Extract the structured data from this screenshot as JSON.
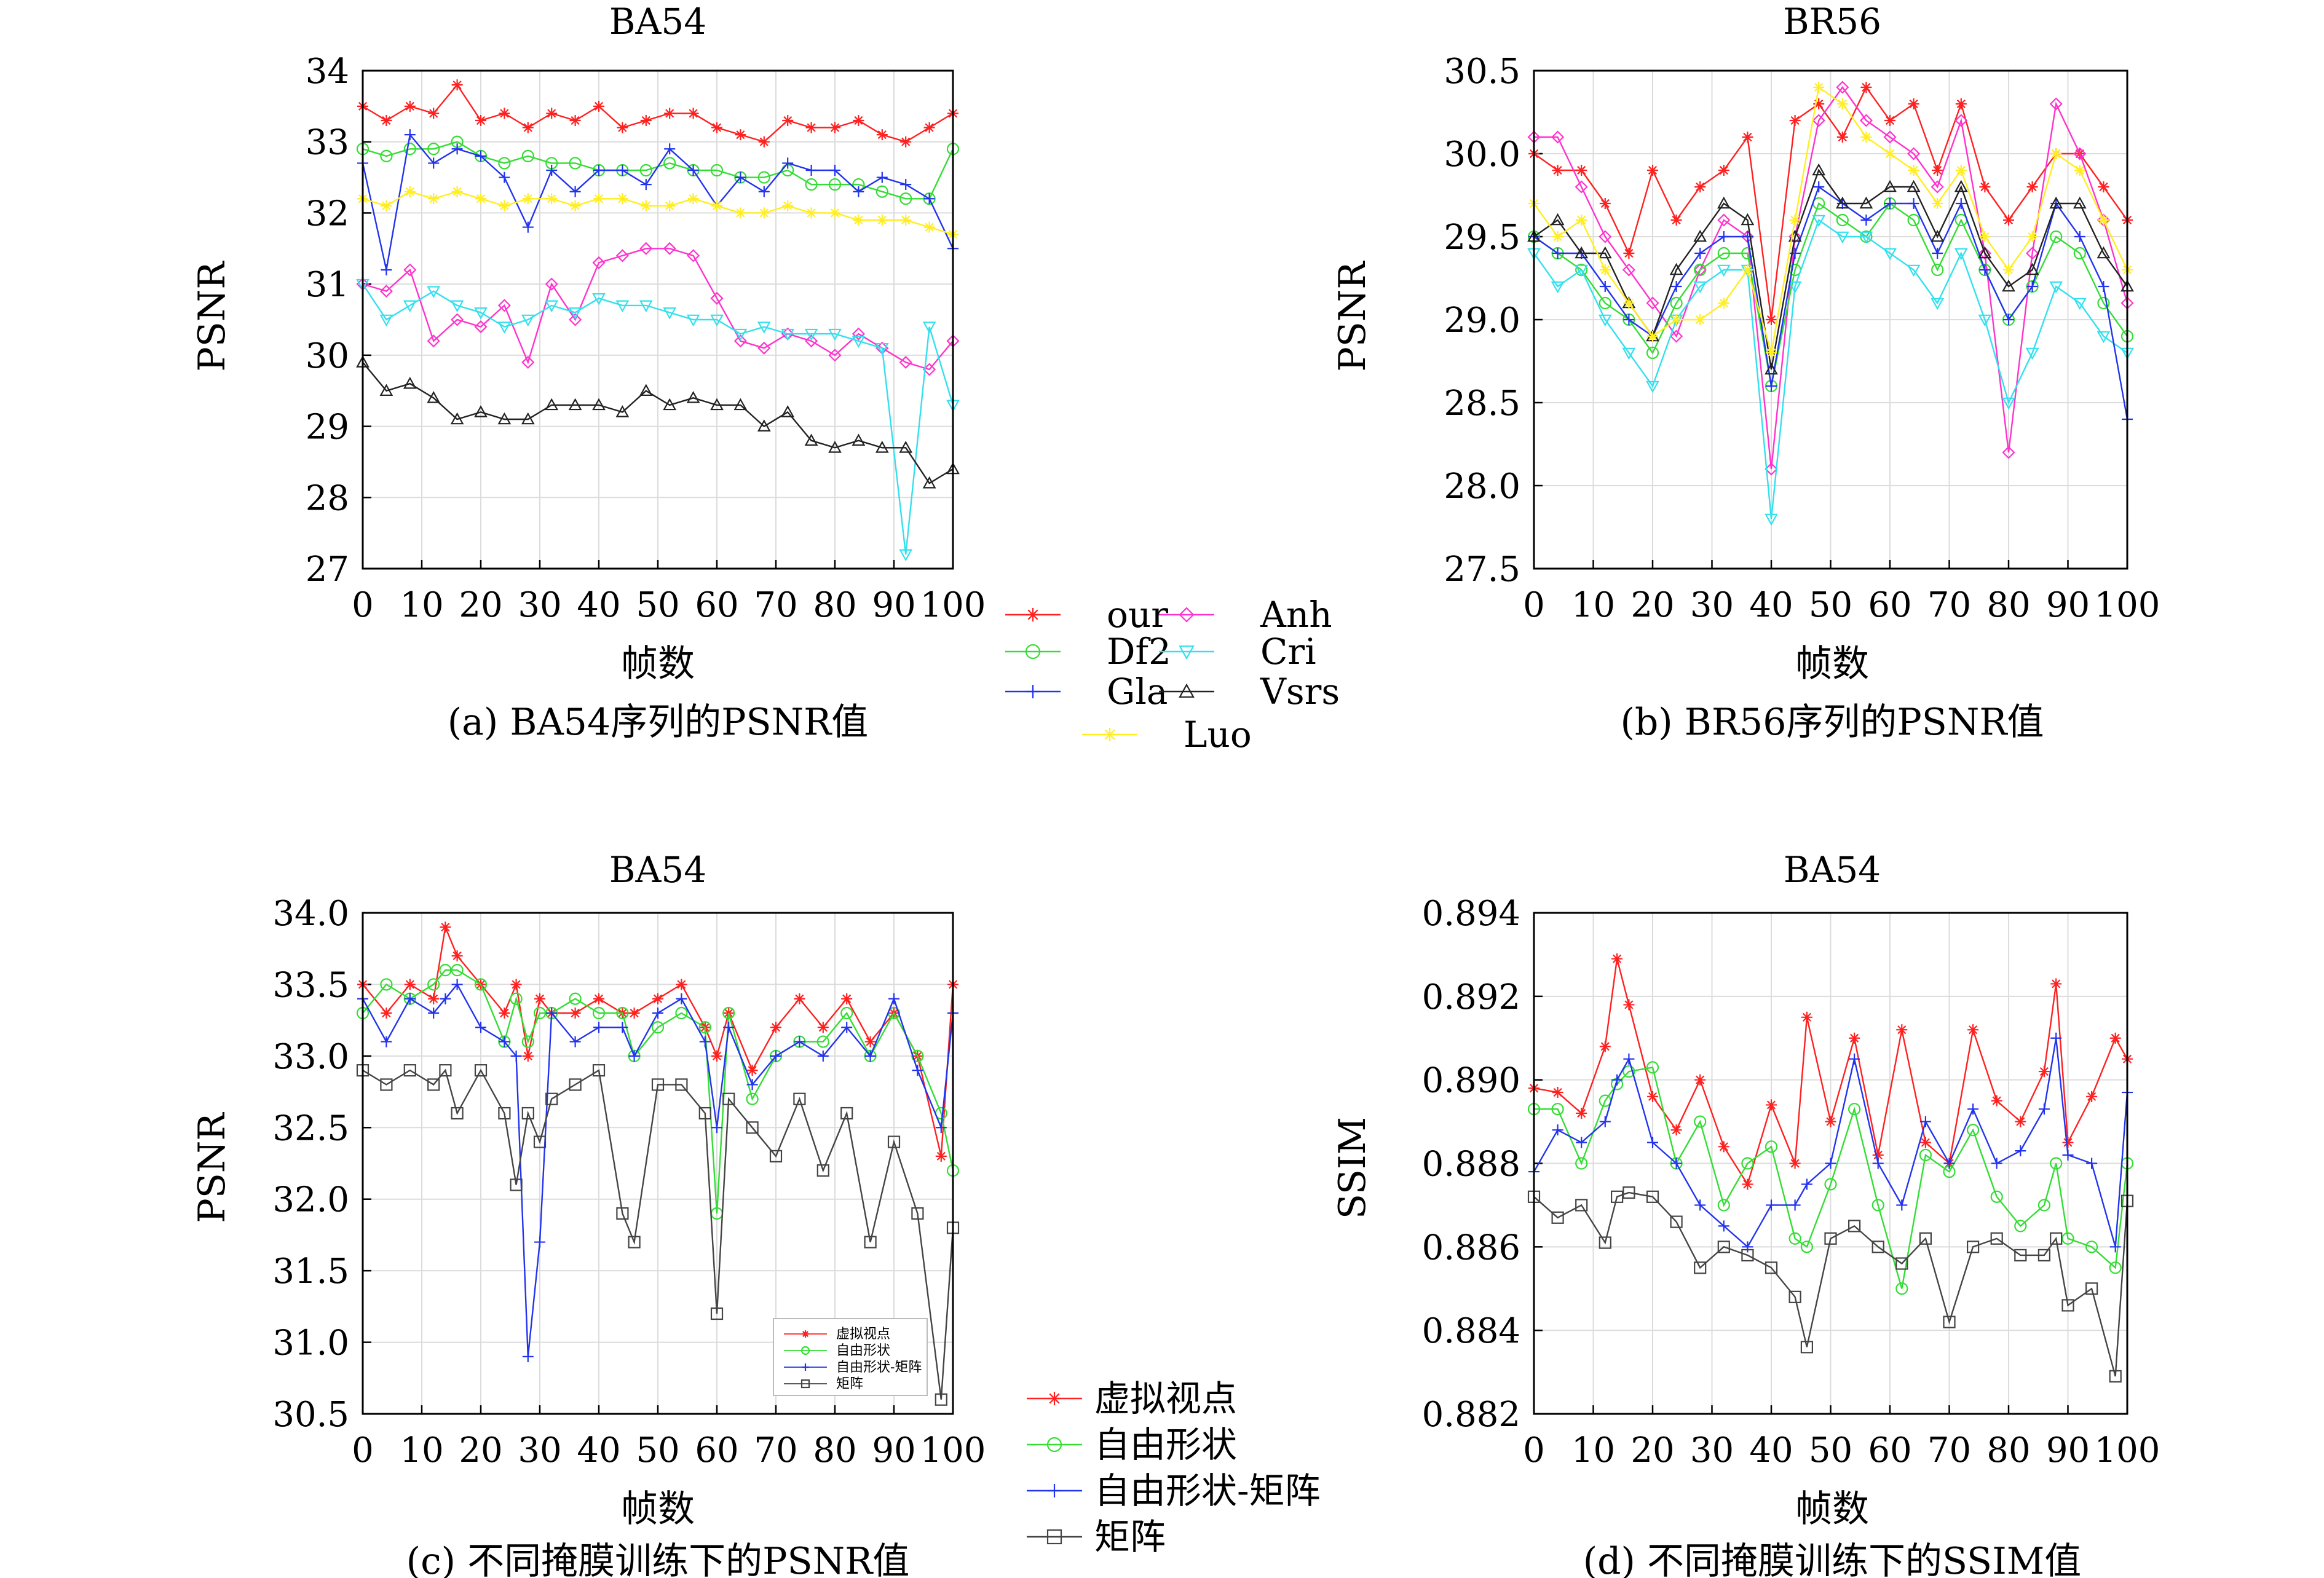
{
  "panels": [
    {
      "id": "a",
      "title": "BA54",
      "ylabel": "PSNR",
      "xlabel": "帧数",
      "caption": "(a) BA54序列的PSNR值",
      "xticks": [
        "0",
        "10",
        "20",
        "30",
        "40",
        "50",
        "60",
        "70",
        "80",
        "90",
        "100"
      ],
      "yticks": [
        "27",
        "28",
        "29",
        "30",
        "31",
        "32",
        "33",
        "34"
      ]
    },
    {
      "id": "b",
      "title": "BR56",
      "ylabel": "PSNR",
      "xlabel": "帧数",
      "caption": "(b) BR56序列的PSNR值",
      "xticks": [
        "0",
        "10",
        "20",
        "30",
        "40",
        "50",
        "60",
        "70",
        "80",
        "90",
        "100"
      ],
      "yticks": [
        "27.5",
        "28.0",
        "28.5",
        "29.0",
        "29.5",
        "30.0",
        "30.5"
      ]
    },
    {
      "id": "c",
      "title": "BA54",
      "ylabel": "PSNR",
      "xlabel": "帧数",
      "caption": "(c) 不同掩膜训练下的PSNR值",
      "xticks": [
        "0",
        "10",
        "20",
        "30",
        "40",
        "50",
        "60",
        "70",
        "80",
        "90",
        "100"
      ],
      "yticks": [
        "30.5",
        "31.0",
        "31.5",
        "32.0",
        "32.5",
        "33.0",
        "33.5",
        "34.0"
      ]
    },
    {
      "id": "d",
      "title": "BA54",
      "ylabel": "SSIM",
      "xlabel": "帧数",
      "caption": "(d) 不同掩膜训练下的SSIM值",
      "xticks": [
        "0",
        "10",
        "20",
        "30",
        "40",
        "50",
        "60",
        "70",
        "80",
        "90",
        "100"
      ],
      "yticks": [
        "0.882",
        "0.884",
        "0.886",
        "0.888",
        "0.890",
        "0.892",
        "0.894"
      ]
    }
  ],
  "legend_top": {
    "items": [
      {
        "label": "our",
        "color": "#ff2020",
        "marker": "star"
      },
      {
        "label": "Anh",
        "color": "#ff33cc",
        "marker": "diamond"
      },
      {
        "label": "Df2",
        "color": "#33dd33",
        "marker": "circle"
      },
      {
        "label": "Cri",
        "color": "#33e0ee",
        "marker": "tri-down"
      },
      {
        "label": "Gla",
        "color": "#2233ee",
        "marker": "plus"
      },
      {
        "label": "Vsrs",
        "color": "#222222",
        "marker": "tri-up"
      },
      {
        "label": "Luo",
        "color": "#ffee22",
        "marker": "star"
      }
    ]
  },
  "legend_bottom": {
    "items": [
      {
        "label": "虚拟视点",
        "color": "#ff2020",
        "marker": "star"
      },
      {
        "label": "自由形状",
        "color": "#33dd33",
        "marker": "circle"
      },
      {
        "label": "自由形状-矩阵",
        "color": "#2233ee",
        "marker": "plus"
      },
      {
        "label": "矩阵",
        "color": "#444444",
        "marker": "square"
      }
    ]
  },
  "chart_data": [
    {
      "type": "line",
      "title": "BA54",
      "xlabel": "帧数",
      "ylabel": "PSNR",
      "xlim": [
        0,
        100
      ],
      "ylim": [
        27,
        34
      ],
      "grid": true,
      "x": [
        0,
        4,
        8,
        12,
        16,
        20,
        24,
        28,
        32,
        36,
        40,
        44,
        48,
        52,
        56,
        60,
        64,
        68,
        72,
        76,
        80,
        84,
        88,
        92,
        96,
        100
      ],
      "series": [
        {
          "name": "our",
          "color": "#ff2020",
          "marker": "star",
          "values": [
            33.5,
            33.3,
            33.5,
            33.4,
            33.8,
            33.3,
            33.4,
            33.2,
            33.4,
            33.3,
            33.5,
            33.2,
            33.3,
            33.4,
            33.4,
            33.2,
            33.1,
            33.0,
            33.3,
            33.2,
            33.2,
            33.3,
            33.1,
            33.0,
            33.2,
            33.4
          ]
        },
        {
          "name": "Df2",
          "color": "#33dd33",
          "marker": "circle",
          "values": [
            32.9,
            32.8,
            32.9,
            32.9,
            33.0,
            32.8,
            32.7,
            32.8,
            32.7,
            32.7,
            32.6,
            32.6,
            32.6,
            32.7,
            32.6,
            32.6,
            32.5,
            32.5,
            32.6,
            32.4,
            32.4,
            32.4,
            32.3,
            32.2,
            32.2,
            32.9
          ]
        },
        {
          "name": "Gla",
          "color": "#2233ee",
          "marker": "plus",
          "values": [
            32.7,
            31.2,
            33.1,
            32.7,
            32.9,
            32.8,
            32.5,
            31.8,
            32.6,
            32.3,
            32.6,
            32.6,
            32.4,
            32.9,
            32.6,
            32.1,
            32.5,
            32.3,
            32.7,
            32.6,
            32.6,
            32.3,
            32.5,
            32.4,
            32.2,
            31.5
          ]
        },
        {
          "name": "Luo",
          "color": "#ffee22",
          "marker": "star",
          "values": [
            32.2,
            32.1,
            32.3,
            32.2,
            32.3,
            32.2,
            32.1,
            32.2,
            32.2,
            32.1,
            32.2,
            32.2,
            32.1,
            32.1,
            32.2,
            32.1,
            32.0,
            32.0,
            32.1,
            32.0,
            32.0,
            31.9,
            31.9,
            31.9,
            31.8,
            31.7
          ]
        },
        {
          "name": "Anh",
          "color": "#ff33cc",
          "marker": "diamond",
          "values": [
            31.0,
            30.9,
            31.2,
            30.2,
            30.5,
            30.4,
            30.7,
            29.9,
            31.0,
            30.5,
            31.3,
            31.4,
            31.5,
            31.5,
            31.4,
            30.8,
            30.2,
            30.1,
            30.3,
            30.2,
            30.0,
            30.3,
            30.1,
            29.9,
            29.8,
            30.2
          ]
        },
        {
          "name": "Cri",
          "color": "#33e0ee",
          "marker": "tri-down",
          "values": [
            31.0,
            30.5,
            30.7,
            30.9,
            30.7,
            30.6,
            30.4,
            30.5,
            30.7,
            30.6,
            30.8,
            30.7,
            30.7,
            30.6,
            30.5,
            30.5,
            30.3,
            30.4,
            30.3,
            30.3,
            30.3,
            30.2,
            30.1,
            27.2,
            30.4,
            29.3
          ]
        },
        {
          "name": "Vsrs",
          "color": "#222222",
          "marker": "tri-up",
          "values": [
            29.9,
            29.5,
            29.6,
            29.4,
            29.1,
            29.2,
            29.1,
            29.1,
            29.3,
            29.3,
            29.3,
            29.2,
            29.5,
            29.3,
            29.4,
            29.3,
            29.3,
            29.0,
            29.2,
            28.8,
            28.7,
            28.8,
            28.7,
            28.7,
            28.2,
            28.4
          ]
        }
      ]
    },
    {
      "type": "line",
      "title": "BR56",
      "xlabel": "帧数",
      "ylabel": "PSNR",
      "xlim": [
        0,
        100
      ],
      "ylim": [
        27.5,
        30.5
      ],
      "grid": true,
      "x": [
        0,
        4,
        8,
        12,
        16,
        20,
        24,
        28,
        32,
        36,
        40,
        44,
        48,
        52,
        56,
        60,
        64,
        68,
        72,
        76,
        80,
        84,
        88,
        92,
        96,
        100
      ],
      "series": [
        {
          "name": "our",
          "color": "#ff2020",
          "marker": "star",
          "values": [
            30.0,
            29.9,
            29.9,
            29.7,
            29.4,
            29.9,
            29.6,
            29.8,
            29.9,
            30.1,
            29.0,
            30.2,
            30.3,
            30.1,
            30.4,
            30.2,
            30.3,
            29.9,
            30.3,
            29.8,
            29.6,
            29.8,
            30.0,
            30.0,
            29.8,
            29.6
          ]
        },
        {
          "name": "Anh",
          "color": "#ff33cc",
          "marker": "diamond",
          "values": [
            30.1,
            30.1,
            29.8,
            29.5,
            29.3,
            29.1,
            28.9,
            29.3,
            29.6,
            29.5,
            28.1,
            29.5,
            30.2,
            30.4,
            30.2,
            30.1,
            30.0,
            29.8,
            30.2,
            29.4,
            28.2,
            29.4,
            30.3,
            30.0,
            29.6,
            29.1
          ]
        },
        {
          "name": "Df2",
          "color": "#33dd33",
          "marker": "circle",
          "values": [
            29.5,
            29.4,
            29.3,
            29.1,
            29.0,
            28.8,
            29.1,
            29.3,
            29.4,
            29.4,
            28.6,
            29.3,
            29.7,
            29.6,
            29.5,
            29.7,
            29.6,
            29.3,
            29.6,
            29.3,
            29.0,
            29.2,
            29.5,
            29.4,
            29.1,
            28.9
          ]
        },
        {
          "name": "Cri",
          "color": "#33e0ee",
          "marker": "tri-down",
          "values": [
            29.4,
            29.2,
            29.3,
            29.0,
            28.8,
            28.6,
            29.0,
            29.2,
            29.3,
            29.3,
            27.8,
            29.2,
            29.6,
            29.5,
            29.5,
            29.4,
            29.3,
            29.1,
            29.4,
            29.0,
            28.5,
            28.8,
            29.2,
            29.1,
            28.9,
            28.8
          ]
        },
        {
          "name": "Gla",
          "color": "#2233ee",
          "marker": "plus",
          "values": [
            29.5,
            29.4,
            29.4,
            29.2,
            29.0,
            28.9,
            29.2,
            29.4,
            29.5,
            29.5,
            28.6,
            29.4,
            29.8,
            29.7,
            29.6,
            29.7,
            29.7,
            29.4,
            29.7,
            29.3,
            29.0,
            29.2,
            29.7,
            29.5,
            29.2,
            28.4
          ]
        },
        {
          "name": "Vsrs",
          "color": "#222222",
          "marker": "tri-up",
          "values": [
            29.5,
            29.6,
            29.4,
            29.4,
            29.1,
            28.9,
            29.3,
            29.5,
            29.7,
            29.6,
            28.7,
            29.5,
            29.9,
            29.7,
            29.7,
            29.8,
            29.8,
            29.5,
            29.8,
            29.4,
            29.2,
            29.3,
            29.7,
            29.7,
            29.4,
            29.2
          ]
        },
        {
          "name": "Luo",
          "color": "#ffee22",
          "marker": "star",
          "values": [
            29.7,
            29.5,
            29.6,
            29.3,
            29.1,
            28.9,
            29.0,
            29.0,
            29.1,
            29.3,
            28.8,
            29.6,
            30.4,
            30.3,
            30.1,
            30.0,
            29.9,
            29.7,
            29.9,
            29.5,
            29.3,
            29.5,
            30.0,
            29.9,
            29.6,
            29.3
          ]
        }
      ]
    },
    {
      "type": "line",
      "title": "BA54",
      "xlabel": "帧数",
      "ylabel": "PSNR",
      "xlim": [
        0,
        100
      ],
      "ylim": [
        30.5,
        34.0
      ],
      "grid": true,
      "x": [
        0,
        4,
        8,
        12,
        14,
        16,
        20,
        24,
        26,
        28,
        30,
        32,
        36,
        40,
        44,
        46,
        50,
        54,
        58,
        60,
        62,
        66,
        70,
        74,
        78,
        82,
        86,
        90,
        94,
        98,
        100
      ],
      "series": [
        {
          "name": "虚拟视点",
          "color": "#ff2020",
          "marker": "star",
          "values": [
            33.5,
            33.3,
            33.5,
            33.4,
            33.9,
            33.7,
            33.5,
            33.3,
            33.5,
            33.0,
            33.4,
            33.3,
            33.3,
            33.4,
            33.3,
            33.3,
            33.4,
            33.5,
            33.2,
            33.0,
            33.3,
            32.9,
            33.2,
            33.4,
            33.2,
            33.4,
            33.1,
            33.3,
            33.0,
            32.3,
            33.5
          ]
        },
        {
          "name": "自由形状",
          "color": "#33dd33",
          "marker": "circle",
          "values": [
            33.3,
            33.5,
            33.4,
            33.5,
            33.6,
            33.6,
            33.5,
            33.1,
            33.4,
            33.1,
            33.3,
            33.3,
            33.4,
            33.3,
            33.3,
            33.0,
            33.2,
            33.3,
            33.2,
            31.9,
            33.3,
            32.7,
            33.0,
            33.1,
            33.1,
            33.3,
            33.0,
            33.3,
            33.0,
            32.6,
            32.2
          ]
        },
        {
          "name": "自由形状-矩阵",
          "color": "#2233ee",
          "marker": "plus",
          "values": [
            33.4,
            33.1,
            33.4,
            33.3,
            33.4,
            33.5,
            33.2,
            33.1,
            33.0,
            30.9,
            31.7,
            33.3,
            33.1,
            33.2,
            33.2,
            33.0,
            33.3,
            33.4,
            33.1,
            32.5,
            33.2,
            32.8,
            33.0,
            33.1,
            33.0,
            33.2,
            33.0,
            33.4,
            32.9,
            32.5,
            33.3
          ]
        },
        {
          "name": "矩阵",
          "color": "#444444",
          "marker": "square",
          "values": [
            32.9,
            32.8,
            32.9,
            32.8,
            32.9,
            32.6,
            32.9,
            32.6,
            32.1,
            32.6,
            32.4,
            32.7,
            32.8,
            32.9,
            31.9,
            31.7,
            32.8,
            32.8,
            32.6,
            31.2,
            32.7,
            32.5,
            32.3,
            32.7,
            32.2,
            32.6,
            31.7,
            32.4,
            31.9,
            30.6,
            31.8
          ]
        }
      ]
    },
    {
      "type": "line",
      "title": "BA54",
      "xlabel": "帧数",
      "ylabel": "SSIM",
      "xlim": [
        0,
        100
      ],
      "ylim": [
        0.882,
        0.894
      ],
      "grid": true,
      "x": [
        0,
        4,
        8,
        12,
        14,
        16,
        20,
        24,
        28,
        32,
        36,
        40,
        44,
        46,
        50,
        54,
        58,
        62,
        66,
        70,
        74,
        78,
        82,
        86,
        88,
        90,
        94,
        98,
        100
      ],
      "series": [
        {
          "name": "虚拟视点",
          "color": "#ff2020",
          "marker": "star",
          "values": [
            0.8898,
            0.8897,
            0.8892,
            0.8908,
            0.8929,
            0.8918,
            0.8896,
            0.8888,
            0.89,
            0.8884,
            0.8875,
            0.8894,
            0.888,
            0.8915,
            0.889,
            0.891,
            0.8882,
            0.8912,
            0.8885,
            0.888,
            0.8912,
            0.8895,
            0.889,
            0.8902,
            0.8923,
            0.8885,
            0.8896,
            0.891,
            0.8905
          ]
        },
        {
          "name": "自由形状",
          "color": "#33dd33",
          "marker": "circle",
          "values": [
            0.8893,
            0.8893,
            0.888,
            0.8895,
            0.8899,
            0.8902,
            0.8903,
            0.888,
            0.889,
            0.887,
            0.888,
            0.8884,
            0.8862,
            0.886,
            0.8875,
            0.8893,
            0.887,
            0.885,
            0.8882,
            0.8878,
            0.8888,
            0.8872,
            0.8865,
            0.887,
            0.888,
            0.8862,
            0.886,
            0.8855,
            0.888
          ]
        },
        {
          "name": "自由形状-矩阵",
          "color": "#2233ee",
          "marker": "plus",
          "values": [
            0.8878,
            0.8888,
            0.8885,
            0.889,
            0.89,
            0.8905,
            0.8885,
            0.888,
            0.887,
            0.8865,
            0.886,
            0.887,
            0.887,
            0.8875,
            0.888,
            0.8905,
            0.888,
            0.887,
            0.889,
            0.888,
            0.8893,
            0.888,
            0.8883,
            0.8893,
            0.891,
            0.8882,
            0.888,
            0.886,
            0.8897
          ]
        },
        {
          "name": "矩阵",
          "color": "#444444",
          "marker": "square",
          "values": [
            0.8872,
            0.8867,
            0.887,
            0.8861,
            0.8872,
            0.8873,
            0.8872,
            0.8866,
            0.8855,
            0.886,
            0.8858,
            0.8855,
            0.8848,
            0.8836,
            0.8862,
            0.8865,
            0.886,
            0.8856,
            0.8862,
            0.8842,
            0.886,
            0.8862,
            0.8858,
            0.8858,
            0.8862,
            0.8846,
            0.885,
            0.8829,
            0.8871
          ]
        }
      ]
    }
  ]
}
